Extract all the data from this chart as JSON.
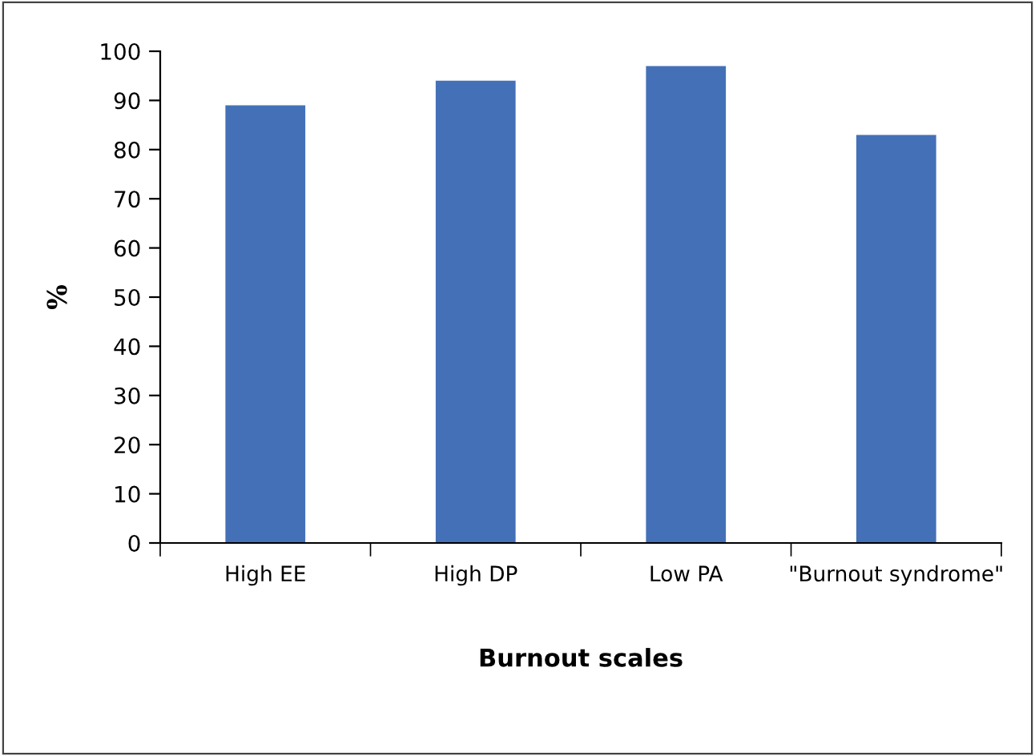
{
  "chart_data": {
    "type": "bar",
    "xlabel": "Burnout scales",
    "ylabel": "%",
    "categories": [
      "High EE",
      "High DP",
      "Low PA",
      "\"Burnout syndrome\""
    ],
    "values": [
      89,
      94,
      97,
      83
    ],
    "color": "#4470b8",
    "ylim": [
      0,
      100
    ],
    "yticks": [
      0,
      10,
      20,
      30,
      40,
      50,
      60,
      70,
      80,
      90,
      100
    ],
    "grid": false
  }
}
